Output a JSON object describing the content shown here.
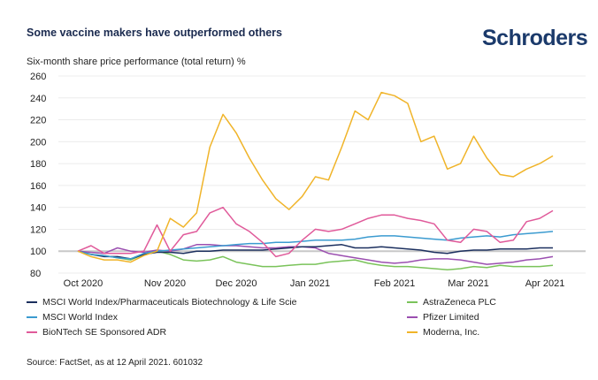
{
  "header": {
    "title": "Some vaccine makers have outperformed others",
    "logo": "Schroders",
    "subtitle": "Six-month share price performance (total return) %"
  },
  "source": "Source: FactSet, as at 12 April 2021. 601032",
  "chart_data": {
    "type": "line",
    "title": "Some vaccine makers have outperformed others",
    "ylabel": "Six-month share price performance (total return) %",
    "xlabel": "",
    "ylim": [
      80,
      260
    ],
    "yticks": [
      80,
      100,
      120,
      140,
      160,
      180,
      200,
      220,
      240,
      260
    ],
    "x_days_step": 5,
    "x_range_days": [
      0,
      180
    ],
    "xticks": [
      {
        "label": "Oct 2020",
        "day": 2
      },
      {
        "label": "Nov 2020",
        "day": 33
      },
      {
        "label": "Dec 2020",
        "day": 60
      },
      {
        "label": "Jan 2021",
        "day": 88
      },
      {
        "label": "Feb 2021",
        "day": 120
      },
      {
        "label": "Mar 2021",
        "day": 148
      },
      {
        "label": "Apr 2021",
        "day": 177
      }
    ],
    "baseline": 100,
    "grid": true,
    "legend_placement": "bottom",
    "series": [
      {
        "name": "MSCI World Index/Pharmaceuticals Biotechnology & Life Scie",
        "color": "#1b2f5e",
        "values": [
          100,
          97,
          95,
          95,
          93,
          97,
          99,
          99,
          98,
          100,
          100,
          101,
          101,
          101,
          101,
          102,
          103,
          104,
          104,
          105,
          106,
          103,
          103,
          104,
          103,
          102,
          101,
          99,
          98,
          100,
          101,
          101,
          102,
          102,
          102,
          103,
          103
        ]
      },
      {
        "name": "MSCI World Index",
        "color": "#3b9bd0",
        "values": [
          100,
          97,
          96,
          94,
          93,
          98,
          100,
          101,
          102,
          103,
          104,
          105,
          106,
          107,
          107,
          108,
          108,
          109,
          110,
          110,
          110,
          111,
          113,
          114,
          114,
          113,
          112,
          111,
          110,
          112,
          113,
          114,
          113,
          115,
          116,
          117,
          118
        ]
      },
      {
        "name": "BioNTech SE Sponsored ADR",
        "color": "#e05a9a",
        "values": [
          100,
          105,
          98,
          98,
          98,
          100,
          124,
          100,
          115,
          118,
          135,
          140,
          125,
          118,
          108,
          95,
          98,
          110,
          120,
          118,
          120,
          125,
          130,
          133,
          133,
          130,
          128,
          125,
          110,
          108,
          120,
          118,
          108,
          110,
          127,
          130,
          137
        ]
      },
      {
        "name": "AstraZeneca PLC",
        "color": "#7ac35a",
        "values": [
          100,
          97,
          96,
          94,
          92,
          97,
          100,
          97,
          92,
          91,
          92,
          95,
          90,
          88,
          86,
          86,
          87,
          88,
          88,
          90,
          91,
          92,
          89,
          87,
          86,
          86,
          85,
          84,
          83,
          84,
          86,
          85,
          87,
          86,
          86,
          86,
          87
        ]
      },
      {
        "name": "Pfizer Limited",
        "color": "#9b4fb0",
        "values": [
          100,
          99,
          98,
          103,
          100,
          99,
          101,
          100,
          102,
          106,
          106,
          105,
          105,
          104,
          103,
          103,
          104,
          104,
          103,
          98,
          96,
          94,
          92,
          90,
          89,
          90,
          92,
          93,
          93,
          92,
          90,
          88,
          89,
          90,
          92,
          93,
          95
        ]
      },
      {
        "name": "Moderna, Inc.",
        "color": "#f0b429",
        "values": [
          100,
          95,
          92,
          92,
          90,
          96,
          100,
          130,
          122,
          135,
          195,
          225,
          208,
          185,
          165,
          148,
          138,
          150,
          168,
          165,
          195,
          228,
          220,
          245,
          242,
          235,
          200,
          205,
          175,
          180,
          205,
          185,
          170,
          168,
          175,
          180,
          187
        ]
      }
    ]
  }
}
